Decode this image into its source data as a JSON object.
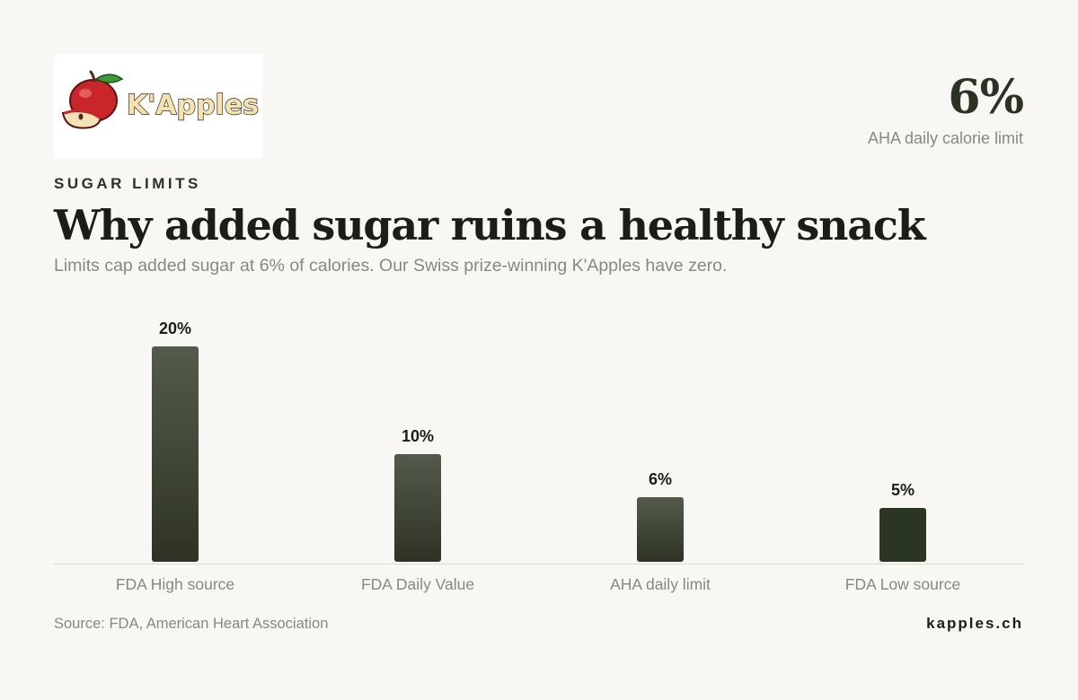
{
  "brand": {
    "logo_text": "K'Apples",
    "website": "kapples.ch"
  },
  "stat": {
    "value": "6%",
    "label": "AHA daily calorie limit"
  },
  "eyebrow": "SUGAR LIMITS",
  "title": "Why added sugar ruins a healthy snack",
  "subtitle": "Limits cap added sugar at 6% of calories. Our Swiss prize-winning K'Apples have zero.",
  "source": "Source: FDA, American Heart Association",
  "colors": {
    "bar_top": "#535a4c",
    "bar_bottom": "#2e3325",
    "bar_last": "#2b3523",
    "accent": "#2b3224",
    "muted_text": "#8a8780",
    "background": "#f8f7f3"
  },
  "chart_data": {
    "type": "bar",
    "categories": [
      "FDA High source",
      "FDA Daily Value",
      "AHA daily limit",
      "FDA Low source"
    ],
    "values": [
      20,
      10,
      6,
      5
    ],
    "value_labels": [
      "20%",
      "10%",
      "6%",
      "5%"
    ],
    "ylim": [
      0,
      20
    ],
    "grid": false,
    "legend": "none"
  }
}
